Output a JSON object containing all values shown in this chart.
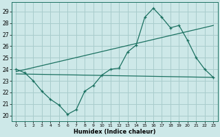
{
  "xlabel": "Humidex (Indice chaleur)",
  "xlim": [
    -0.5,
    23.5
  ],
  "ylim": [
    19.5,
    29.8
  ],
  "xticks": [
    0,
    1,
    2,
    3,
    4,
    5,
    6,
    7,
    8,
    9,
    10,
    11,
    12,
    13,
    14,
    15,
    16,
    17,
    18,
    19,
    20,
    21,
    22,
    23
  ],
  "yticks": [
    20,
    21,
    22,
    23,
    24,
    25,
    26,
    27,
    28,
    29
  ],
  "background_color": "#cde8e8",
  "grid_color": "#a8cccc",
  "line_color": "#1a7060",
  "line1_x": [
    0,
    1,
    2,
    3,
    4,
    5,
    6,
    7,
    8,
    9,
    10,
    11,
    12,
    13,
    14,
    15,
    16,
    17,
    18,
    19,
    20,
    21,
    22,
    23
  ],
  "line1_y": [
    24.0,
    23.7,
    23.0,
    22.1,
    21.4,
    20.9,
    20.1,
    20.5,
    22.1,
    22.6,
    23.5,
    24.0,
    24.1,
    25.5,
    26.1,
    28.5,
    29.3,
    28.5,
    27.6,
    27.8,
    26.5,
    25.0,
    24.0,
    23.3
  ],
  "line2_x": [
    0,
    23
  ],
  "line2_y": [
    23.8,
    27.8
  ],
  "line3_x": [
    0,
    23
  ],
  "line3_y": [
    23.6,
    23.3
  ],
  "marker": "+"
}
